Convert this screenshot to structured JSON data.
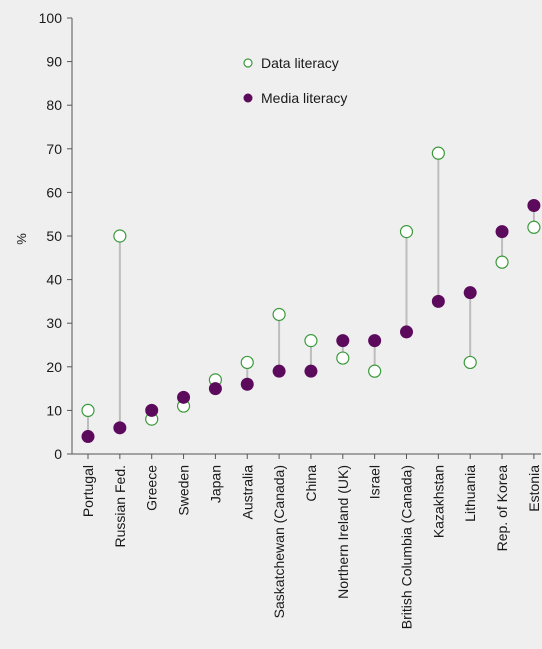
{
  "chart_data": {
    "type": "scatter",
    "ylabel": "%",
    "ylim": [
      0,
      100
    ],
    "yticks": [
      0,
      10,
      20,
      30,
      40,
      50,
      60,
      70,
      80,
      90,
      100
    ],
    "grid": false,
    "legend_position": "top-center",
    "categories": [
      "Portugal",
      "Russian Fed.",
      "Greece",
      "Sweden",
      "Japan",
      "Australia",
      "Saskatchewan (Canada)",
      "China",
      "Northern Ireland (UK)",
      "Israel",
      "British Columbia (Canada)",
      "Kazakhstan",
      "Lithuania",
      "Rep. of Korea",
      "Estonia"
    ],
    "series": [
      {
        "name": "Data literacy",
        "marker": "hollow-circle",
        "color": "#3a9a3a",
        "values": [
          10,
          50,
          8,
          11,
          17,
          21,
          32,
          26,
          22,
          19,
          51,
          69,
          21,
          44,
          52
        ]
      },
      {
        "name": "Media literacy",
        "marker": "filled-circle",
        "color": "#5c0a5c",
        "values": [
          4,
          6,
          10,
          13,
          15,
          16,
          19,
          19,
          26,
          26,
          28,
          35,
          37,
          51,
          57
        ]
      }
    ],
    "connector_color": "#bdbdbd"
  }
}
